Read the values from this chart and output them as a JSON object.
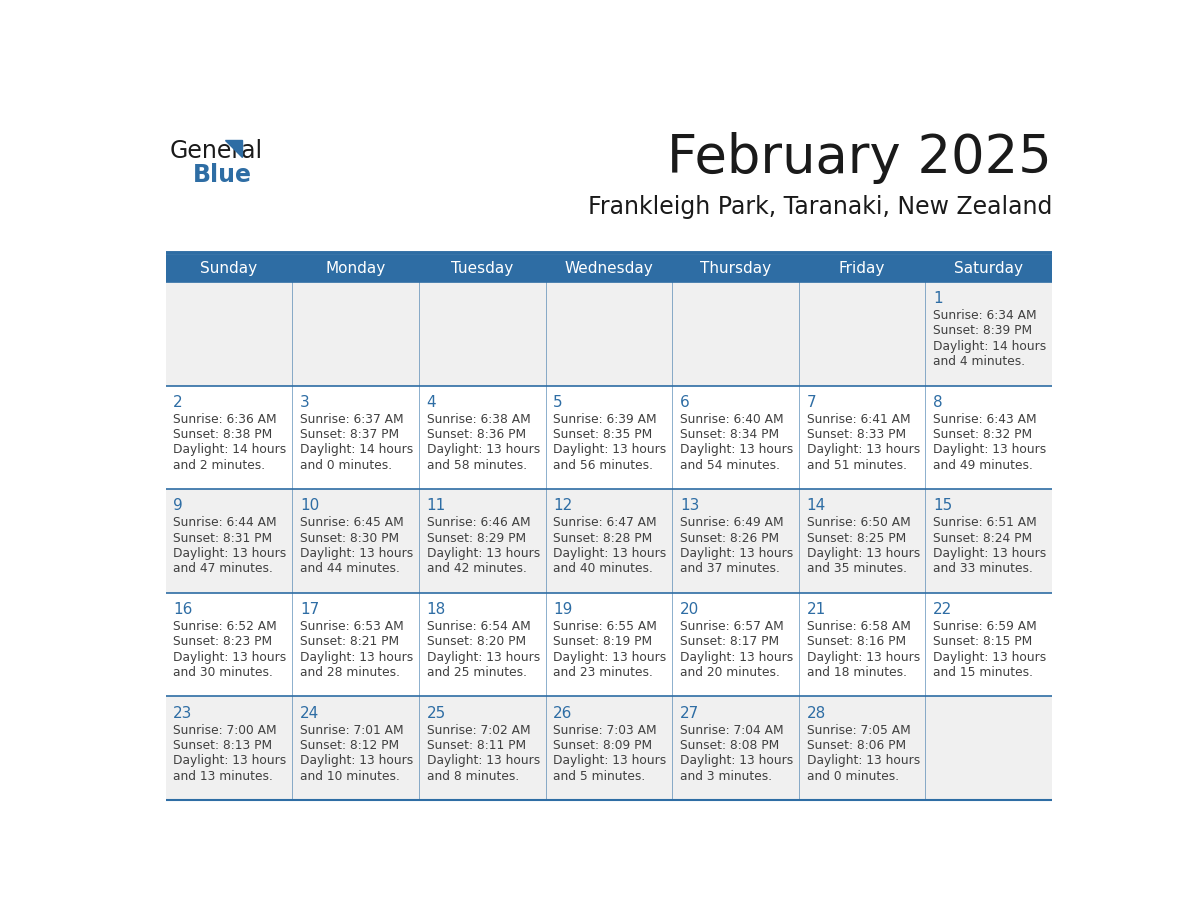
{
  "title": "February 2025",
  "subtitle": "Frankleigh Park, Taranaki, New Zealand",
  "header_color": "#2E6DA4",
  "header_text_color": "#FFFFFF",
  "day_names": [
    "Sunday",
    "Monday",
    "Tuesday",
    "Wednesday",
    "Thursday",
    "Friday",
    "Saturday"
  ],
  "bg_color": "#FFFFFF",
  "cell_bg_light": "#F0F0F0",
  "border_color": "#2E6DA4",
  "day_num_color": "#2E6DA4",
  "text_color": "#404040",
  "logo_general_color": "#1A1A1A",
  "logo_blue_color": "#2E6DA4",
  "weeks": [
    [
      {
        "day": null
      },
      {
        "day": null
      },
      {
        "day": null
      },
      {
        "day": null
      },
      {
        "day": null
      },
      {
        "day": null
      },
      {
        "day": 1,
        "sunrise": "6:34 AM",
        "sunset": "8:39 PM",
        "daylight_line1": "Daylight: 14 hours",
        "daylight_line2": "and 4 minutes."
      }
    ],
    [
      {
        "day": 2,
        "sunrise": "6:36 AM",
        "sunset": "8:38 PM",
        "daylight_line1": "Daylight: 14 hours",
        "daylight_line2": "and 2 minutes."
      },
      {
        "day": 3,
        "sunrise": "6:37 AM",
        "sunset": "8:37 PM",
        "daylight_line1": "Daylight: 14 hours",
        "daylight_line2": "and 0 minutes."
      },
      {
        "day": 4,
        "sunrise": "6:38 AM",
        "sunset": "8:36 PM",
        "daylight_line1": "Daylight: 13 hours",
        "daylight_line2": "and 58 minutes."
      },
      {
        "day": 5,
        "sunrise": "6:39 AM",
        "sunset": "8:35 PM",
        "daylight_line1": "Daylight: 13 hours",
        "daylight_line2": "and 56 minutes."
      },
      {
        "day": 6,
        "sunrise": "6:40 AM",
        "sunset": "8:34 PM",
        "daylight_line1": "Daylight: 13 hours",
        "daylight_line2": "and 54 minutes."
      },
      {
        "day": 7,
        "sunrise": "6:41 AM",
        "sunset": "8:33 PM",
        "daylight_line1": "Daylight: 13 hours",
        "daylight_line2": "and 51 minutes."
      },
      {
        "day": 8,
        "sunrise": "6:43 AM",
        "sunset": "8:32 PM",
        "daylight_line1": "Daylight: 13 hours",
        "daylight_line2": "and 49 minutes."
      }
    ],
    [
      {
        "day": 9,
        "sunrise": "6:44 AM",
        "sunset": "8:31 PM",
        "daylight_line1": "Daylight: 13 hours",
        "daylight_line2": "and 47 minutes."
      },
      {
        "day": 10,
        "sunrise": "6:45 AM",
        "sunset": "8:30 PM",
        "daylight_line1": "Daylight: 13 hours",
        "daylight_line2": "and 44 minutes."
      },
      {
        "day": 11,
        "sunrise": "6:46 AM",
        "sunset": "8:29 PM",
        "daylight_line1": "Daylight: 13 hours",
        "daylight_line2": "and 42 minutes."
      },
      {
        "day": 12,
        "sunrise": "6:47 AM",
        "sunset": "8:28 PM",
        "daylight_line1": "Daylight: 13 hours",
        "daylight_line2": "and 40 minutes."
      },
      {
        "day": 13,
        "sunrise": "6:49 AM",
        "sunset": "8:26 PM",
        "daylight_line1": "Daylight: 13 hours",
        "daylight_line2": "and 37 minutes."
      },
      {
        "day": 14,
        "sunrise": "6:50 AM",
        "sunset": "8:25 PM",
        "daylight_line1": "Daylight: 13 hours",
        "daylight_line2": "and 35 minutes."
      },
      {
        "day": 15,
        "sunrise": "6:51 AM",
        "sunset": "8:24 PM",
        "daylight_line1": "Daylight: 13 hours",
        "daylight_line2": "and 33 minutes."
      }
    ],
    [
      {
        "day": 16,
        "sunrise": "6:52 AM",
        "sunset": "8:23 PM",
        "daylight_line1": "Daylight: 13 hours",
        "daylight_line2": "and 30 minutes."
      },
      {
        "day": 17,
        "sunrise": "6:53 AM",
        "sunset": "8:21 PM",
        "daylight_line1": "Daylight: 13 hours",
        "daylight_line2": "and 28 minutes."
      },
      {
        "day": 18,
        "sunrise": "6:54 AM",
        "sunset": "8:20 PM",
        "daylight_line1": "Daylight: 13 hours",
        "daylight_line2": "and 25 minutes."
      },
      {
        "day": 19,
        "sunrise": "6:55 AM",
        "sunset": "8:19 PM",
        "daylight_line1": "Daylight: 13 hours",
        "daylight_line2": "and 23 minutes."
      },
      {
        "day": 20,
        "sunrise": "6:57 AM",
        "sunset": "8:17 PM",
        "daylight_line1": "Daylight: 13 hours",
        "daylight_line2": "and 20 minutes."
      },
      {
        "day": 21,
        "sunrise": "6:58 AM",
        "sunset": "8:16 PM",
        "daylight_line1": "Daylight: 13 hours",
        "daylight_line2": "and 18 minutes."
      },
      {
        "day": 22,
        "sunrise": "6:59 AM",
        "sunset": "8:15 PM",
        "daylight_line1": "Daylight: 13 hours",
        "daylight_line2": "and 15 minutes."
      }
    ],
    [
      {
        "day": 23,
        "sunrise": "7:00 AM",
        "sunset": "8:13 PM",
        "daylight_line1": "Daylight: 13 hours",
        "daylight_line2": "and 13 minutes."
      },
      {
        "day": 24,
        "sunrise": "7:01 AM",
        "sunset": "8:12 PM",
        "daylight_line1": "Daylight: 13 hours",
        "daylight_line2": "and 10 minutes."
      },
      {
        "day": 25,
        "sunrise": "7:02 AM",
        "sunset": "8:11 PM",
        "daylight_line1": "Daylight: 13 hours",
        "daylight_line2": "and 8 minutes."
      },
      {
        "day": 26,
        "sunrise": "7:03 AM",
        "sunset": "8:09 PM",
        "daylight_line1": "Daylight: 13 hours",
        "daylight_line2": "and 5 minutes."
      },
      {
        "day": 27,
        "sunrise": "7:04 AM",
        "sunset": "8:08 PM",
        "daylight_line1": "Daylight: 13 hours",
        "daylight_line2": "and 3 minutes."
      },
      {
        "day": 28,
        "sunrise": "7:05 AM",
        "sunset": "8:06 PM",
        "daylight_line1": "Daylight: 13 hours",
        "daylight_line2": "and 0 minutes."
      },
      {
        "day": null
      }
    ]
  ]
}
